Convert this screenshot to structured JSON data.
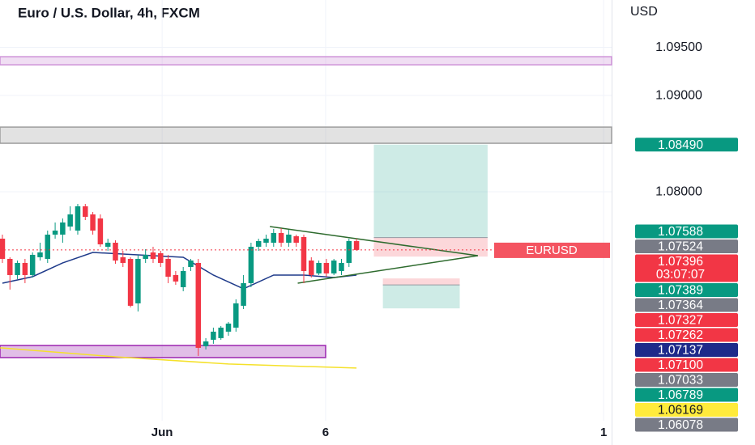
{
  "chart_data": {
    "type": "candlestick",
    "title": "Euro / U.S. Dollar, 4h, FXCM",
    "currency": "USD",
    "symbol_label": "EURUSD",
    "countdown": "03:07:07",
    "xlim": [
      -0.32,
      80.86
    ],
    "ylim": [
      1.05622,
      1.09992
    ],
    "xticks": [
      {
        "value": 21.2,
        "label": "Jun"
      },
      {
        "value": 42.9,
        "label": "6"
      },
      {
        "value": 79.8,
        "label": "1"
      }
    ],
    "yticks": [
      {
        "value": 1.095,
        "label": "1.09500"
      },
      {
        "value": 1.09,
        "label": "1.09000"
      },
      {
        "value": 1.08,
        "label": "1.08000"
      }
    ],
    "grid": true,
    "up_color": "#089981",
    "down_color": "#f23645",
    "candles": [
      [
        1.07513,
        1.07555,
        1.07261,
        1.07303
      ],
      [
        1.07303,
        1.0732,
        1.06984,
        1.07135
      ],
      [
        1.07135,
        1.07286,
        1.07093,
        1.07261
      ],
      [
        1.07261,
        1.07303,
        1.07051,
        1.07135
      ],
      [
        1.07135,
        1.0737,
        1.0711,
        1.07345
      ],
      [
        1.0732,
        1.07471,
        1.07286,
        1.0737
      ],
      [
        1.07303,
        1.07597,
        1.07261,
        1.07555
      ],
      [
        1.07555,
        1.07681,
        1.07513,
        1.07597
      ],
      [
        1.07555,
        1.07723,
        1.07471,
        1.07681
      ],
      [
        1.07639,
        1.07849,
        1.07597,
        1.07765
      ],
      [
        1.07597,
        1.07874,
        1.07555,
        1.07849
      ],
      [
        1.07849,
        1.07874,
        1.07706,
        1.0774
      ],
      [
        1.07765,
        1.0779,
        1.07555,
        1.07597
      ],
      [
        1.07723,
        1.07765,
        1.07429,
        1.07454
      ],
      [
        1.07429,
        1.07513,
        1.07387,
        1.07471
      ],
      [
        1.07471,
        1.07496,
        1.07252,
        1.07286
      ],
      [
        1.0732,
        1.07387,
        1.07219,
        1.07261
      ],
      [
        1.07303,
        1.0732,
        1.06799,
        1.06816
      ],
      [
        1.06841,
        1.07345,
        1.06757,
        1.07303
      ],
      [
        1.07303,
        1.07404,
        1.07261,
        1.07345
      ],
      [
        1.0737,
        1.07429,
        1.07261,
        1.07303
      ],
      [
        1.07362,
        1.07387,
        1.07219,
        1.07261
      ],
      [
        1.07303,
        1.07345,
        1.07051,
        1.07118
      ],
      [
        1.07135,
        1.07177,
        1.07034,
        1.07068
      ],
      [
        1.07009,
        1.07219,
        1.06967,
        1.07177
      ],
      [
        1.07219,
        1.07303,
        1.07177,
        1.07286
      ],
      [
        1.07261,
        1.07303,
        1.06295,
        1.06379
      ],
      [
        1.06396,
        1.0648,
        1.06362,
        1.06446
      ],
      [
        1.06463,
        1.06589,
        1.06421,
        1.06547
      ],
      [
        1.0648,
        1.06606,
        1.06463,
        1.06589
      ],
      [
        1.06547,
        1.06648,
        1.06505,
        1.06631
      ],
      [
        1.06589,
        1.06883,
        1.06547,
        1.06841
      ],
      [
        1.06816,
        1.07135,
        1.06782,
        1.07051
      ],
      [
        1.07051,
        1.07471,
        1.07009,
        1.07429
      ],
      [
        1.07429,
        1.07513,
        1.07387,
        1.07488
      ],
      [
        1.07471,
        1.07555,
        1.07429,
        1.07513
      ],
      [
        1.07471,
        1.07614,
        1.07429,
        1.07572
      ],
      [
        1.07572,
        1.07622,
        1.07429,
        1.07471
      ],
      [
        1.07471,
        1.07605,
        1.07429,
        1.07555
      ],
      [
        1.07538,
        1.07555,
        1.07429,
        1.07471
      ],
      [
        1.0753,
        1.07555,
        1.07051,
        1.07177
      ],
      [
        1.07286,
        1.0732,
        1.0711,
        1.07135
      ],
      [
        1.07152,
        1.07286,
        1.07135,
        1.07261
      ],
      [
        1.07261,
        1.07303,
        1.07118,
        1.07152
      ],
      [
        1.07152,
        1.07303,
        1.07135,
        1.07286
      ],
      [
        1.07177,
        1.07303,
        1.07135,
        1.07261
      ],
      [
        1.07261,
        1.07513,
        1.07219,
        1.07488
      ],
      [
        1.07488,
        1.07513,
        1.07387,
        1.07396
      ]
    ],
    "lines": [
      {
        "color": "#1e3a8a",
        "x": [
          0,
          4,
          8,
          12,
          16,
          20,
          24,
          28,
          32,
          36,
          40,
          44,
          47
        ],
        "values": [
          1.07051,
          1.07118,
          1.07261,
          1.0737,
          1.07353,
          1.07336,
          1.0732,
          1.07135,
          1.06992,
          1.07135,
          1.07135,
          1.0711,
          1.07135
        ]
      },
      {
        "color": "#f5e12a",
        "x": [
          -0.3,
          15,
          30,
          47
        ],
        "values": [
          1.06379,
          1.06286,
          1.06211,
          1.06169
        ]
      },
      {
        "color": "#2e6b2e",
        "x": [
          35.5,
          63.1
        ],
        "values": [
          1.07639,
          1.07336
        ]
      },
      {
        "color": "#2e6b2e",
        "x": [
          39.2,
          63.1
        ],
        "values": [
          1.07051,
          1.07336
        ]
      }
    ],
    "zones": [
      {
        "from": -0.32,
        "to": 80.86,
        "top": 1.09403,
        "bottom": 1.09319,
        "color": "#ce93d8"
      },
      {
        "from": -0.32,
        "to": 80.86,
        "top": 1.08672,
        "bottom": 1.08504,
        "color": "#9e9e9e"
      },
      {
        "from": -0.32,
        "to": 42.9,
        "top": 1.06404,
        "bottom": 1.06278,
        "color": "#9c27b0"
      }
    ],
    "positions": [
      {
        "from": 49.3,
        "to": 64.4,
        "target": 1.0849,
        "entry": 1.07524,
        "stop": 1.07327
      },
      {
        "from": 50.5,
        "to": 60.7,
        "target": 1.06789,
        "entry": 1.07033,
        "stop": 1.071
      }
    ],
    "price_labels": [
      {
        "value": 1.0849,
        "label": "1.08490",
        "color": "#089981"
      },
      {
        "value": 1.07588,
        "label": "1.07588",
        "color": "#089981"
      },
      {
        "value": 1.07524,
        "label": "1.07524",
        "color": "#787b86"
      },
      {
        "value": 1.07396,
        "label": "1.07396",
        "color": "#f23645"
      },
      {
        "value": 1.07389,
        "label": "1.07389",
        "color": "#089981"
      },
      {
        "value": 1.07364,
        "label": "1.07364",
        "color": "#787b86"
      },
      {
        "value": 1.07327,
        "label": "1.07327",
        "color": "#f23645"
      },
      {
        "value": 1.07262,
        "label": "1.07262",
        "color": "#f23645"
      },
      {
        "value": 1.07137,
        "label": "1.07137",
        "color": "#1e2a8a"
      },
      {
        "value": 1.071,
        "label": "1.07100",
        "color": "#f23645"
      },
      {
        "value": 1.07033,
        "label": "1.07033",
        "color": "#787b86"
      },
      {
        "value": 1.06789,
        "label": "1.06789",
        "color": "#089981"
      },
      {
        "value": 1.06169,
        "label": "1.06169",
        "color": "#ffeb3b"
      },
      {
        "value": 1.06078,
        "label": "1.06078",
        "color": "#787b86"
      }
    ]
  }
}
